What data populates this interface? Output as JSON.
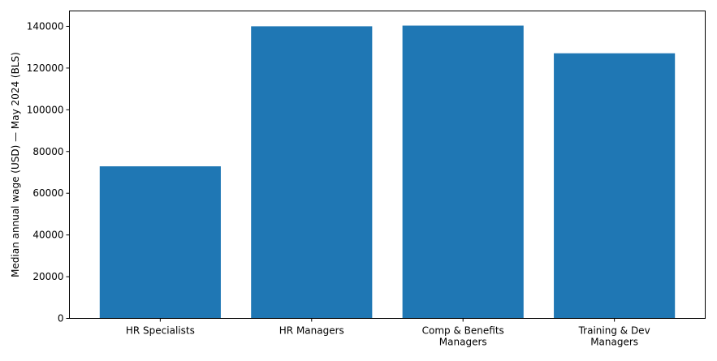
{
  "chart_data": {
    "type": "bar",
    "categories": [
      [
        "HR Specialists"
      ],
      [
        "HR Managers"
      ],
      [
        "Comp & Benefits",
        "Managers"
      ],
      [
        "Training & Dev",
        "Managers"
      ]
    ],
    "values": [
      72910,
      140030,
      140360,
      127090
    ],
    "title": "",
    "xlabel": "",
    "ylabel": "Median annual wage (USD) — May 2024 (BLS)",
    "ylim": [
      0,
      147378
    ],
    "yticks": [
      0,
      20000,
      40000,
      60000,
      80000,
      100000,
      120000,
      140000
    ],
    "grid": false,
    "bar_color": "#1f77b4"
  }
}
